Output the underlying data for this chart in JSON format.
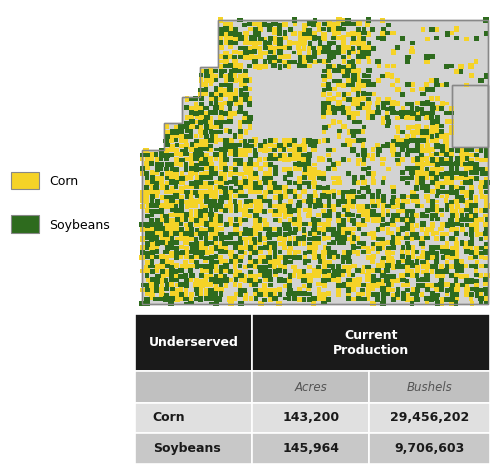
{
  "fig_width": 5.0,
  "fig_height": 4.69,
  "dpi": 100,
  "corn_color": "#F5D327",
  "soybean_color": "#2E6B1E",
  "map_bg_color": "#D3D3D3",
  "map_border_color": "#888888",
  "outer_bg_color": "#E8E8E8",
  "table_header_bg": "#1a1a1a",
  "table_header_fg": "#ffffff",
  "table_subheader_bg": "#C0C0C0",
  "table_subheader_fg": "#555555",
  "table_row1_bg": "#E0E0E0",
  "table_row2_bg": "#C8C8C8",
  "table_row_fg": "#1a1a1a",
  "legend_corn": "Corn",
  "legend_soybean": "Soybeans",
  "col_underserved": "Underserved",
  "col_production": "Current\nProduction",
  "subheader_acres": "Acres",
  "subheader_bushels": "Bushels",
  "row_corn": "Corn",
  "row_soybean": "Soybeans",
  "corn_acres": "143,200",
  "corn_bushels": "29,456,202",
  "soy_acres": "145,964",
  "soy_bushels": "9,706,603"
}
